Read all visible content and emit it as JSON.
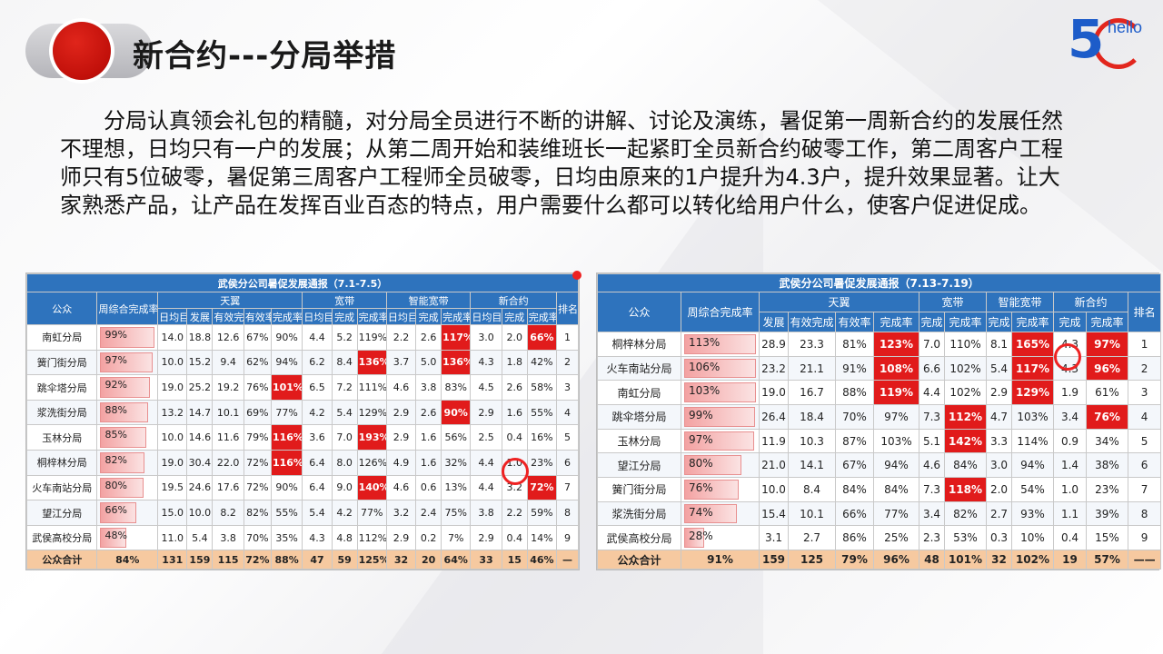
{
  "header": {
    "title": "新合约---分局举措"
  },
  "logo": {
    "five": "5",
    "hello": "hello"
  },
  "paragraph": "分局认真领会礼包的精髓，对分局全员进行不断的讲解、讨论及演练，暑促第一周新合约的发展任然不理想，日均只有一户的发展；从第二周开始和装维班长一起紧盯全员新合约破零工作，第二周客户工程师只有5位破零，暑促第三周客户工程师全员破零，日均由原来的1户提升为4.3户，提升效果显著。让大家熟悉产品，让产品在发挥百业百态的特点，用户需要什么都可以转化给用户什么，使客户促进促成。",
  "table1": {
    "caption": "武侯分公司暑促发展通报（7.1-7.5）",
    "headers": {
      "company": "公众",
      "weekly_rate": "周综合完成率",
      "group_tianyi": "天翼",
      "group_kuandai": "宽带",
      "group_zhineng": "智能宽带",
      "group_xinheyue": "新合约",
      "rank": "排名",
      "daily_target": "日均目标",
      "fazhan": "发展",
      "youxiao": "有效完成",
      "youxiaolv": "有效率",
      "wanchenglv": "完成率",
      "wancheng": "完成"
    },
    "rows": [
      {
        "name": "南虹分局",
        "rate": "99%",
        "ty_t": "14.0",
        "ty_f": "18.8",
        "ty_y": "12.6",
        "ty_yl": "67%",
        "ty_w": "90%",
        "kd_t": "4.4",
        "kd_w": "5.2",
        "kd_r": "119%",
        "zn_t": "2.2",
        "zn_w": "2.6",
        "zn_r": "117%",
        "xh_t": "3.0",
        "xh_w": "2.0",
        "xh_r": "66%",
        "rank": "1"
      },
      {
        "name": "簧门街分局",
        "rate": "97%",
        "ty_t": "10.0",
        "ty_f": "15.2",
        "ty_y": "9.4",
        "ty_yl": "62%",
        "ty_w": "94%",
        "kd_t": "6.2",
        "kd_w": "8.4",
        "kd_r": "136%",
        "zn_t": "3.7",
        "zn_w": "5.0",
        "zn_r": "136%",
        "xh_t": "4.3",
        "xh_w": "1.8",
        "xh_r": "42%",
        "rank": "2"
      },
      {
        "name": "跳伞塔分局",
        "rate": "92%",
        "ty_t": "19.0",
        "ty_f": "25.2",
        "ty_y": "19.2",
        "ty_yl": "76%",
        "ty_w": "101%",
        "kd_t": "6.5",
        "kd_w": "7.2",
        "kd_r": "111%",
        "zn_t": "4.6",
        "zn_w": "3.8",
        "zn_r": "83%",
        "xh_t": "4.5",
        "xh_w": "2.6",
        "xh_r": "58%",
        "rank": "3"
      },
      {
        "name": "浆洗街分局",
        "rate": "88%",
        "ty_t": "13.2",
        "ty_f": "14.7",
        "ty_y": "10.1",
        "ty_yl": "69%",
        "ty_w": "77%",
        "kd_t": "4.2",
        "kd_w": "5.4",
        "kd_r": "129%",
        "zn_t": "2.9",
        "zn_w": "2.6",
        "zn_r": "90%",
        "xh_t": "2.9",
        "xh_w": "1.6",
        "xh_r": "55%",
        "rank": "4"
      },
      {
        "name": "玉林分局",
        "rate": "85%",
        "ty_t": "10.0",
        "ty_f": "14.6",
        "ty_y": "11.6",
        "ty_yl": "79%",
        "ty_w": "116%",
        "kd_t": "3.6",
        "kd_w": "7.0",
        "kd_r": "193%",
        "zn_t": "2.9",
        "zn_w": "1.6",
        "zn_r": "56%",
        "xh_t": "2.5",
        "xh_w": "0.4",
        "xh_r": "16%",
        "rank": "5"
      },
      {
        "name": "桐梓林分局",
        "rate": "82%",
        "ty_t": "19.0",
        "ty_f": "30.4",
        "ty_y": "22.0",
        "ty_yl": "72%",
        "ty_w": "116%",
        "kd_t": "6.4",
        "kd_w": "8.0",
        "kd_r": "126%",
        "zn_t": "4.9",
        "zn_w": "1.6",
        "zn_r": "32%",
        "xh_t": "4.4",
        "xh_w": "1.0",
        "xh_r": "23%",
        "rank": "6"
      },
      {
        "name": "火车南站分局",
        "rate": "80%",
        "ty_t": "19.5",
        "ty_f": "24.6",
        "ty_y": "17.6",
        "ty_yl": "72%",
        "ty_w": "90%",
        "kd_t": "6.4",
        "kd_w": "9.0",
        "kd_r": "140%",
        "zn_t": "4.6",
        "zn_w": "0.6",
        "zn_r": "13%",
        "xh_t": "4.4",
        "xh_w": "3.2",
        "xh_r": "72%",
        "rank": "7"
      },
      {
        "name": "望江分局",
        "rate": "66%",
        "ty_t": "15.0",
        "ty_f": "10.0",
        "ty_y": "8.2",
        "ty_yl": "82%",
        "ty_w": "55%",
        "kd_t": "5.4",
        "kd_w": "4.2",
        "kd_r": "77%",
        "zn_t": "3.2",
        "zn_w": "2.4",
        "zn_r": "75%",
        "xh_t": "3.8",
        "xh_w": "2.2",
        "xh_r": "59%",
        "rank": "8"
      },
      {
        "name": "武侯高校分局",
        "rate": "48%",
        "ty_t": "11.0",
        "ty_f": "5.4",
        "ty_y": "3.8",
        "ty_yl": "70%",
        "ty_w": "35%",
        "kd_t": "4.3",
        "kd_w": "4.8",
        "kd_r": "112%",
        "zn_t": "2.9",
        "zn_w": "0.2",
        "zn_r": "7%",
        "xh_t": "2.9",
        "xh_w": "0.4",
        "xh_r": "14%",
        "rank": "9"
      }
    ],
    "total": {
      "name": "公众合计",
      "rate": "84%",
      "ty_t": "131",
      "ty_f": "159",
      "ty_y": "115",
      "ty_yl": "72%",
      "ty_w": "88%",
      "kd_t": "47",
      "kd_w": "59",
      "kd_r": "125%",
      "zn_t": "32",
      "zn_w": "20",
      "zn_r": "64%",
      "xh_t": "33",
      "xh_w": "15",
      "xh_r": "46%",
      "rank": "—"
    }
  },
  "table2": {
    "caption": "武侯分公司暑促发展通报（7.13-7.19）",
    "headers": {
      "company": "公众",
      "weekly_rate": "周综合完成率",
      "group_tianyi": "天翼",
      "group_kuandai": "宽带",
      "group_zhineng": "智能宽带",
      "group_xinheyue": "新合约",
      "rank": "排名",
      "fazhan": "发展",
      "youxiao": "有效完成",
      "youxiaolv": "有效率",
      "wanchenglv": "完成率",
      "wancheng": "完成"
    },
    "rows": [
      {
        "name": "桐梓林分局",
        "rate": "113%",
        "ty_f": "28.9",
        "ty_y": "23.3",
        "ty_yl": "81%",
        "ty_w": "123%",
        "kd_w": "7.0",
        "kd_r": "110%",
        "zn_w": "8.1",
        "zn_r": "165%",
        "xh_w": "4.3",
        "xh_r": "97%",
        "rank": "1"
      },
      {
        "name": "火车南站分局",
        "rate": "106%",
        "ty_f": "23.2",
        "ty_y": "21.1",
        "ty_yl": "91%",
        "ty_w": "108%",
        "kd_w": "6.6",
        "kd_r": "102%",
        "zn_w": "5.4",
        "zn_r": "117%",
        "xh_w": "4.3",
        "xh_r": "96%",
        "rank": "2"
      },
      {
        "name": "南虹分局",
        "rate": "103%",
        "ty_f": "19.0",
        "ty_y": "16.7",
        "ty_yl": "88%",
        "ty_w": "119%",
        "kd_w": "4.4",
        "kd_r": "102%",
        "zn_w": "2.9",
        "zn_r": "129%",
        "xh_w": "1.9",
        "xh_r": "61%",
        "rank": "3"
      },
      {
        "name": "跳伞塔分局",
        "rate": "99%",
        "ty_f": "26.4",
        "ty_y": "18.4",
        "ty_yl": "70%",
        "ty_w": "97%",
        "kd_w": "7.3",
        "kd_r": "112%",
        "zn_w": "4.7",
        "zn_r": "103%",
        "xh_w": "3.4",
        "xh_r": "76%",
        "rank": "4"
      },
      {
        "name": "玉林分局",
        "rate": "97%",
        "ty_f": "11.9",
        "ty_y": "10.3",
        "ty_yl": "87%",
        "ty_w": "103%",
        "kd_w": "5.1",
        "kd_r": "142%",
        "zn_w": "3.3",
        "zn_r": "114%",
        "xh_w": "0.9",
        "xh_r": "34%",
        "rank": "5"
      },
      {
        "name": "望江分局",
        "rate": "80%",
        "ty_f": "21.0",
        "ty_y": "14.1",
        "ty_yl": "67%",
        "ty_w": "94%",
        "kd_w": "4.6",
        "kd_r": "84%",
        "zn_w": "3.0",
        "zn_r": "94%",
        "xh_w": "1.4",
        "xh_r": "38%",
        "rank": "6"
      },
      {
        "name": "簧门街分局",
        "rate": "76%",
        "ty_f": "10.0",
        "ty_y": "8.4",
        "ty_yl": "84%",
        "ty_w": "84%",
        "kd_w": "7.3",
        "kd_r": "118%",
        "zn_w": "2.0",
        "zn_r": "54%",
        "xh_w": "1.0",
        "xh_r": "23%",
        "rank": "7"
      },
      {
        "name": "浆洗街分局",
        "rate": "74%",
        "ty_f": "15.4",
        "ty_y": "10.1",
        "ty_yl": "66%",
        "ty_w": "77%",
        "kd_w": "3.4",
        "kd_r": "82%",
        "zn_w": "2.7",
        "zn_r": "93%",
        "xh_w": "1.1",
        "xh_r": "39%",
        "rank": "8"
      },
      {
        "name": "武侯高校分局",
        "rate": "28%",
        "ty_f": "3.1",
        "ty_y": "2.7",
        "ty_yl": "86%",
        "ty_w": "25%",
        "kd_w": "2.3",
        "kd_r": "53%",
        "zn_w": "0.3",
        "zn_r": "10%",
        "xh_w": "0.4",
        "xh_r": "15%",
        "rank": "9"
      }
    ],
    "total": {
      "name": "公众合计",
      "rate": "91%",
      "ty_f": "159",
      "ty_y": "125",
      "ty_yl": "79%",
      "ty_w": "96%",
      "kd_w": "48",
      "kd_r": "101%",
      "zn_w": "32",
      "zn_r": "102%",
      "xh_w": "19",
      "xh_r": "57%",
      "rank": "——"
    }
  },
  "colors": {
    "header_blue": "#2e73bd",
    "highlight_red": "#e11b1b",
    "total_orange": "#f6c9a0",
    "title_red": "#c1100a"
  }
}
